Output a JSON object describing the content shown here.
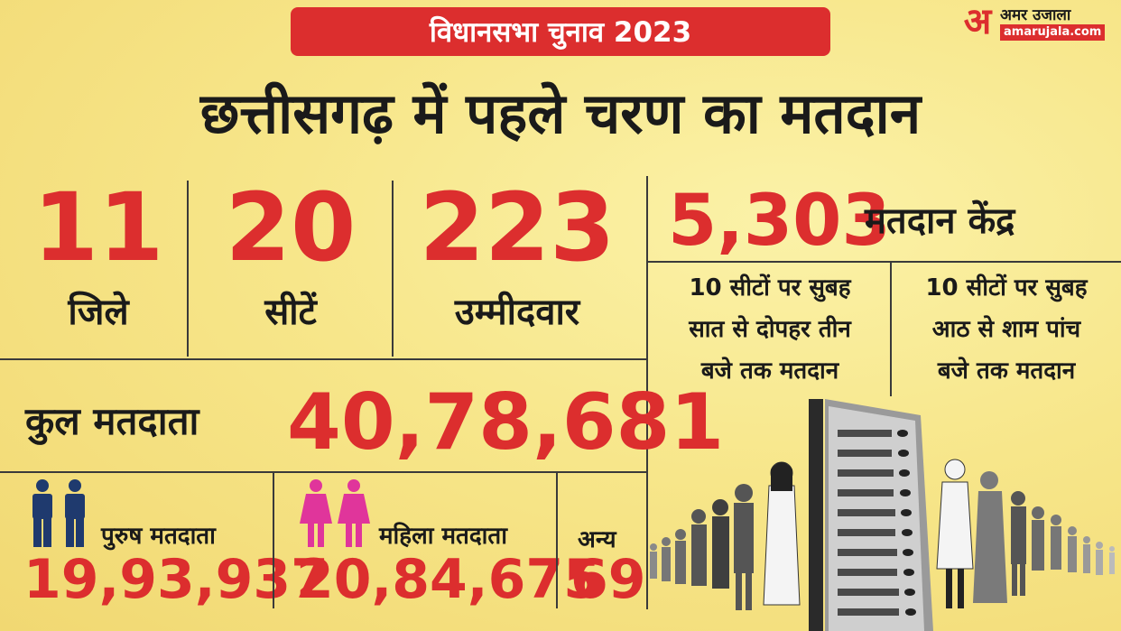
{
  "banner": {
    "text": "विधानसभा चुनाव 2023"
  },
  "logo": {
    "mark": "अ",
    "name": "अमर उजाला",
    "url": "amarujala.com"
  },
  "headline": "छत्तीसगढ़ में पहले चरण का मतदान",
  "stats": [
    {
      "value": "11",
      "label": "जिले"
    },
    {
      "value": "20",
      "label": "सीटें"
    },
    {
      "value": "223",
      "label": "उम्मीदवार"
    }
  ],
  "polling_centers": {
    "value": "5,303",
    "label": "मतदान केंद्र"
  },
  "timings": [
    {
      "lines": [
        "10 सीटों पर सुबह",
        "सात से दोपहर तीन",
        "बजे तक मतदान"
      ]
    },
    {
      "lines": [
        "10 सीटों पर सुबह",
        "आठ से शाम पांच",
        "बजे तक मतदान"
      ]
    }
  ],
  "total_voters": {
    "label": "कुल मतदाता",
    "value": "40,78,681"
  },
  "breakdown": {
    "male": {
      "label": "पुरुष मतदाता",
      "value": "19,93,937",
      "icon": "male-voters-icon",
      "color": "#1f3a6e"
    },
    "female": {
      "label": "महिला मतदाता",
      "value": "20,84,675",
      "icon": "female-voters-icon",
      "color": "#e0359b"
    },
    "other": {
      "label": "अन्य",
      "value": "69"
    }
  },
  "colors": {
    "accent": "#dc2e2e",
    "background": "#f7e68a",
    "text": "#1a1a1a"
  },
  "illustration": {
    "icon": "voters-queue-evm-illustration"
  }
}
